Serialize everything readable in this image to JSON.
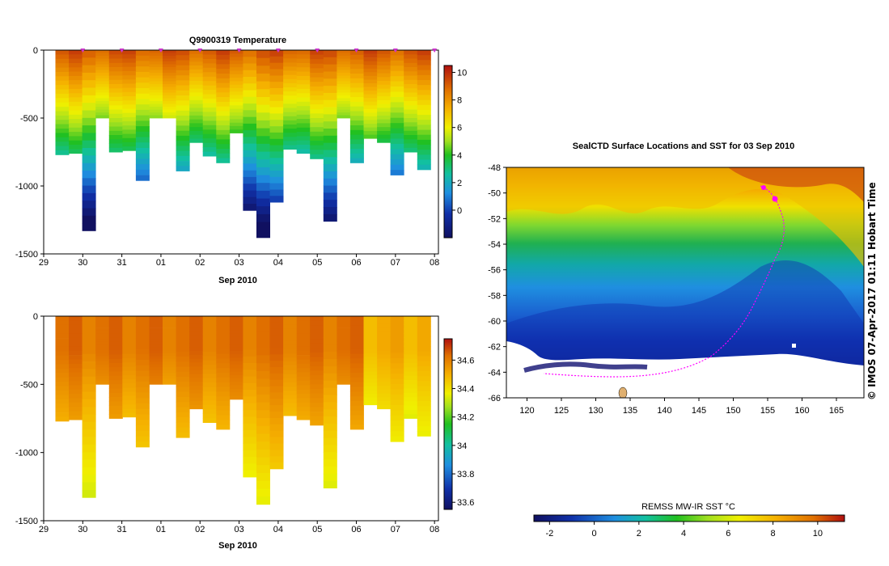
{
  "chart_data": [
    {
      "type": "heatmap",
      "title": "Q9900319  Temperature",
      "xlabel": "Sep 2010",
      "ylabel": "",
      "x_ticks": [
        "29",
        "30",
        "31",
        "01",
        "02",
        "03",
        "04",
        "05",
        "06",
        "07",
        "08"
      ],
      "y_ticks": [
        "0",
        "-500",
        "-1000",
        "-1500"
      ],
      "ylim": [
        -1500,
        0
      ],
      "colorbar_ticks": [
        "10",
        "8",
        "6",
        "4",
        "2",
        "0"
      ],
      "colorbar_range": [
        -2,
        10.5
      ],
      "profile_max_depth": [
        770,
        760,
        1330,
        500,
        750,
        740,
        960,
        500,
        500,
        890,
        680,
        780,
        830,
        610,
        1180,
        1380,
        1120,
        730,
        760,
        800,
        1260,
        500,
        830,
        650,
        680,
        920,
        750,
        880
      ]
    },
    {
      "type": "heatmap",
      "title": "",
      "xlabel": "Sep 2010",
      "ylabel": "",
      "x_ticks": [
        "29",
        "30",
        "31",
        "01",
        "02",
        "03",
        "04",
        "05",
        "06",
        "07",
        "08"
      ],
      "y_ticks": [
        "0",
        "-500",
        "-1000",
        "-1500"
      ],
      "ylim": [
        -1500,
        0
      ],
      "colorbar_ticks": [
        "34.6",
        "34.4",
        "34.2",
        "34",
        "33.8",
        "33.6"
      ],
      "colorbar_range": [
        33.55,
        34.75
      ]
    },
    {
      "type": "heatmap",
      "title": "SealCTD Surface Locations and SST for 03 Sep 2010",
      "x_ticks": [
        "120",
        "125",
        "130",
        "135",
        "140",
        "145",
        "150",
        "155",
        "160",
        "165"
      ],
      "y_ticks": [
        "-48",
        "-50",
        "-52",
        "-54",
        "-56",
        "-58",
        "-60",
        "-62",
        "-64",
        "-66"
      ],
      "xlim": [
        117,
        169
      ],
      "ylim": [
        -66,
        -48
      ],
      "colorbar_label": "REMSS MW-IR SST °C",
      "colorbar_ticks": [
        "-2",
        "0",
        "2",
        "4",
        "6",
        "8",
        "10"
      ],
      "colorbar_range": [
        -2.7,
        11.2
      ],
      "stamp": "© IMOS 07-Apr-2017 01:11 Hobart Time"
    }
  ]
}
